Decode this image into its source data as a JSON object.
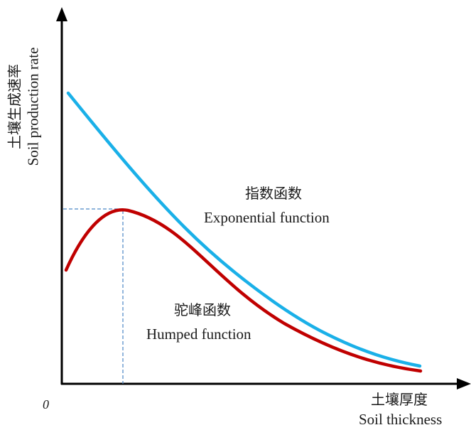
{
  "origin_label": "0",
  "y_axis": {
    "label_cn": "土壤生成速率",
    "label_en": "Soil production rate"
  },
  "x_axis": {
    "label_cn": "土壤厚度",
    "label_en": "Soil thickness"
  },
  "curves": {
    "exponential": {
      "label_cn": "指数函数",
      "label_en": "Exponential function",
      "color": "#1ab0e8"
    },
    "humped": {
      "label_cn": "驼峰函数",
      "label_en": "Humped function",
      "color": "#c00000"
    }
  },
  "guide_color": "#4a86c5"
}
